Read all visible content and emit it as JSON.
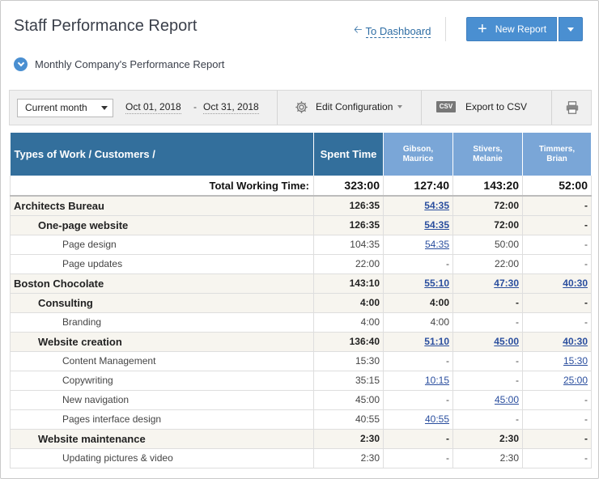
{
  "header": {
    "title": "Staff Performance Report",
    "dashboard_link": "To Dashboard",
    "new_report": "New Report",
    "subtitle": "Monthly Company's Performance Report"
  },
  "toolbar": {
    "period": "Current month",
    "date_from": "Oct 01, 2018",
    "date_sep": "-",
    "date_to": "Oct 31, 2018",
    "edit_config": "Edit Configuration",
    "export_csv": "Export to CSV",
    "csv_badge": "CSV"
  },
  "table": {
    "col_work": "Types of Work / Customers /",
    "col_spent": "Spent Time",
    "users": [
      {
        "line1": "Gibson,",
        "line2": "Maurice"
      },
      {
        "line1": "Stivers,",
        "line2": "Melanie"
      },
      {
        "line1": "Timmers,",
        "line2": "Brian"
      }
    ],
    "total": {
      "label": "Total Working Time:",
      "spent": "323:00",
      "u1": "127:40",
      "u2": "143:20",
      "u3": "52:00"
    },
    "rows": [
      {
        "level": 0,
        "name": "Architects Bureau",
        "spent": "126:35",
        "u1": "54:35",
        "u1_link": true,
        "u2": "72:00",
        "u2_link": false,
        "u3": "-",
        "u3_link": false
      },
      {
        "level": 1,
        "name": "One-page website",
        "spent": "126:35",
        "u1": "54:35",
        "u1_link": true,
        "u2": "72:00",
        "u2_link": false,
        "u3": "-",
        "u3_link": false
      },
      {
        "level": 2,
        "name": "Page design",
        "spent": "104:35",
        "u1": "54:35",
        "u1_link": true,
        "u2": "50:00",
        "u2_link": false,
        "u3": "-",
        "u3_link": false
      },
      {
        "level": 2,
        "name": "Page updates",
        "spent": "22:00",
        "u1": "-",
        "u1_link": false,
        "u2": "22:00",
        "u2_link": false,
        "u3": "-",
        "u3_link": false
      },
      {
        "level": 0,
        "name": "Boston Chocolate",
        "spent": "143:10",
        "u1": "55:10",
        "u1_link": true,
        "u2": "47:30",
        "u2_link": true,
        "u3": "40:30",
        "u3_link": true
      },
      {
        "level": 1,
        "name": "Consulting",
        "spent": "4:00",
        "u1": "4:00",
        "u1_link": false,
        "u2": "-",
        "u2_link": false,
        "u3": "-",
        "u3_link": false
      },
      {
        "level": 2,
        "name": "Branding",
        "spent": "4:00",
        "u1": "4:00",
        "u1_link": false,
        "u2": "-",
        "u2_link": false,
        "u3": "-",
        "u3_link": false
      },
      {
        "level": 1,
        "name": "Website creation",
        "spent": "136:40",
        "u1": "51:10",
        "u1_link": true,
        "u2": "45:00",
        "u2_link": true,
        "u3": "40:30",
        "u3_link": true
      },
      {
        "level": 2,
        "name": "Content Management",
        "spent": "15:30",
        "u1": "-",
        "u1_link": false,
        "u2": "-",
        "u2_link": false,
        "u3": "15:30",
        "u3_link": true
      },
      {
        "level": 2,
        "name": "Copywriting",
        "spent": "35:15",
        "u1": "10:15",
        "u1_link": true,
        "u2": "-",
        "u2_link": false,
        "u3": "25:00",
        "u3_link": true
      },
      {
        "level": 2,
        "name": "New navigation",
        "spent": "45:00",
        "u1": "-",
        "u1_link": false,
        "u2": "45:00",
        "u2_link": true,
        "u3": "-",
        "u3_link": false
      },
      {
        "level": 2,
        "name": "Pages interface design",
        "spent": "40:55",
        "u1": "40:55",
        "u1_link": true,
        "u2": "-",
        "u2_link": false,
        "u3": "-",
        "u3_link": false
      },
      {
        "level": 1,
        "name": "Website maintenance",
        "spent": "2:30",
        "u1": "-",
        "u1_link": false,
        "u2": "2:30",
        "u2_link": false,
        "u3": "-",
        "u3_link": false
      },
      {
        "level": 2,
        "name": "Updating pictures & video",
        "spent": "2:30",
        "u1": "-",
        "u1_link": false,
        "u2": "2:30",
        "u2_link": false,
        "u3": "-",
        "u3_link": false
      }
    ]
  },
  "icons": {
    "back": "arrow-left-icon",
    "plus": "plus-icon",
    "caret": "chevron-down-icon",
    "check": "check-circle-icon",
    "gear": "gear-icon",
    "csv": "csv-file-icon",
    "print": "printer-icon"
  },
  "colors": {
    "accent": "#4a8fd1",
    "header_dark": "#336f9c",
    "header_user": "#7aa6d7",
    "link": "#2a4e9e",
    "group_bg": "#f7f5ef"
  }
}
